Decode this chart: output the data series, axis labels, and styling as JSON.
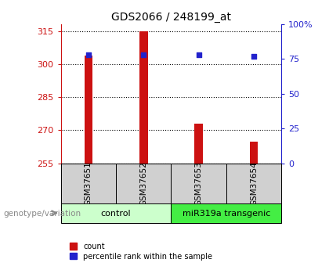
{
  "title": "GDS2066 / 248199_at",
  "samples": [
    "GSM37651",
    "GSM37652",
    "GSM37653",
    "GSM37654"
  ],
  "counts": [
    304,
    315,
    273,
    265
  ],
  "percentiles": [
    78,
    78,
    78,
    77
  ],
  "ylim_left": [
    255,
    318
  ],
  "yticks_left": [
    255,
    270,
    285,
    300,
    315
  ],
  "ylim_right": [
    0,
    100
  ],
  "yticks_right": [
    0,
    25,
    50,
    75,
    100
  ],
  "ytick_labels_right": [
    "0",
    "25",
    "50",
    "75",
    "100%"
  ],
  "bar_color": "#cc1111",
  "dot_color": "#2222cc",
  "bar_width": 0.15,
  "left_tick_color": "#cc1111",
  "right_tick_color": "#2222cc",
  "legend_items": [
    "count",
    "percentile rank within the sample"
  ],
  "genotype_label": "genotype/variation",
  "control_color": "#ccffcc",
  "transgenic_color": "#44ee44",
  "sample_box_color": "#d0d0d0"
}
